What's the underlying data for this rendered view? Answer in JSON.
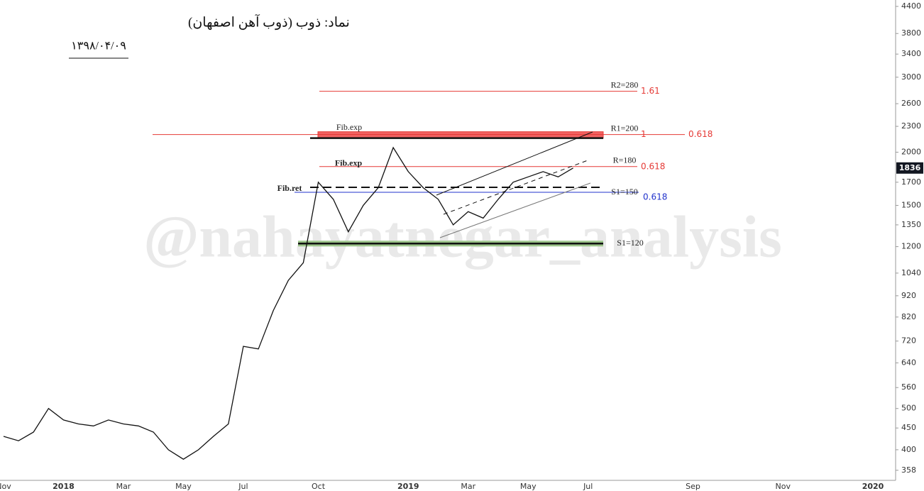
{
  "chart_data": {
    "type": "line",
    "title": "نماد: ذوب (ذوب آهن اصفهان)",
    "subtitle": "۱۳۹۸/۰۴/۰۹",
    "watermark": "@nahayatnegar_analysis",
    "log_scale": true,
    "color": "#111111",
    "categories": [
      "Nov",
      null,
      null,
      null,
      "2018",
      null,
      null,
      null,
      "Mar",
      null,
      null,
      null,
      "May",
      null,
      null,
      null,
      "Jul",
      null,
      null,
      null,
      null,
      "Oct",
      null,
      null,
      null,
      null,
      null,
      "2019",
      null,
      null,
      null,
      "Mar",
      null,
      null,
      null,
      "May",
      null,
      null,
      null,
      "Jul",
      null,
      null,
      null,
      null,
      null,
      null,
      "Sep",
      null,
      null,
      null,
      null,
      null,
      "Nov",
      null,
      null,
      null,
      null,
      null,
      "2020"
    ],
    "series": [
      {
        "name": "ذوب",
        "color": "#111111",
        "values": [
          430,
          420,
          440,
          500,
          470,
          460,
          455,
          470,
          460,
          455,
          440,
          400,
          380,
          400,
          430,
          460,
          700,
          690,
          850,
          1000,
          1100,
          1700,
          1550,
          1300,
          1500,
          1650,
          2050,
          1800,
          1650,
          1550,
          1350,
          1450,
          1400,
          1550,
          1700,
          1750,
          1800,
          1750,
          1836,
          null,
          null,
          null,
          null,
          null,
          null,
          null,
          null,
          null,
          null,
          null,
          null,
          null,
          null,
          null,
          null,
          null,
          null,
          null,
          null
        ]
      }
    ],
    "ylim": [
      339,
      4555
    ],
    "yticks": [
      358,
      400,
      450,
      500,
      560,
      640,
      720,
      820,
      920,
      1040,
      1200,
      1350,
      1500,
      1700,
      2000,
      2300,
      2600,
      3000,
      3400,
      3800,
      4400
    ],
    "levels": [
      {
        "label": "R2=280",
        "ratio": 1.61,
        "price": 2780,
        "color": "#e53935"
      },
      {
        "label": "R1=200",
        "ratio": 1,
        "ratio2": 0.618,
        "price": 2200,
        "color": "#e53935"
      },
      {
        "label": "R=180",
        "ratio": 0.618,
        "price": 1850,
        "color": "#e53935"
      },
      {
        "label": "S1=150",
        "ratio": 0.618,
        "price": 1610,
        "color": "#2233cc"
      },
      {
        "label": "S1=120",
        "price": 1220,
        "color": "#111111"
      }
    ],
    "notes": [
      {
        "text": "Fib.exp",
        "price": 2280
      },
      {
        "text": "Fib.exp",
        "price": 1880
      },
      {
        "text": "Fib.ret",
        "price": 1640
      }
    ]
  }
}
